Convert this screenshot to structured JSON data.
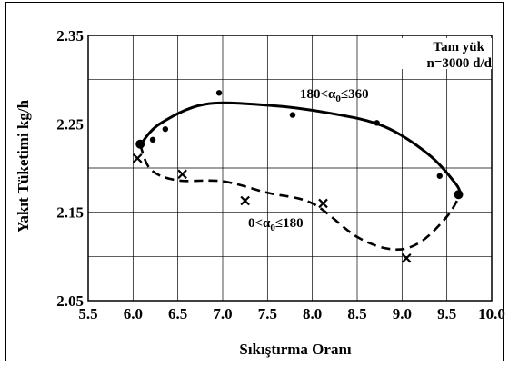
{
  "chart_data": {
    "type": "scatter",
    "title": "",
    "xlabel": "Sıkıştırma Oranı",
    "ylabel": "Yakıt Tüketimi kg/h",
    "xlim": [
      5.5,
      10.0
    ],
    "ylim": [
      2.05,
      2.35
    ],
    "x_ticks": [
      "5.5",
      "6.0",
      "6.5",
      "7.0",
      "7.5",
      "8.0",
      "8.5",
      "9.0",
      "9.5",
      "10.0"
    ],
    "y_ticks": [
      "2.05",
      "2.15",
      "2.25",
      "2.35"
    ],
    "grid": true,
    "note_lines": [
      "Tam yük",
      "n=3000 d/d"
    ],
    "series": [
      {
        "name": "180<α₀≤360",
        "marker": "dot",
        "line": "solid",
        "points": [
          [
            6.08,
            2.227
          ],
          [
            6.22,
            2.232
          ],
          [
            6.36,
            2.244
          ],
          [
            6.96,
            2.285
          ],
          [
            7.78,
            2.26
          ],
          [
            8.72,
            2.251
          ],
          [
            9.42,
            2.191
          ],
          [
            9.63,
            2.17
          ]
        ],
        "curve": [
          [
            6.08,
            2.226
          ],
          [
            6.3,
            2.25
          ],
          [
            6.8,
            2.272
          ],
          [
            7.5,
            2.271
          ],
          [
            8.2,
            2.262
          ],
          [
            8.8,
            2.247
          ],
          [
            9.3,
            2.215
          ],
          [
            9.6,
            2.182
          ],
          [
            9.65,
            2.17
          ]
        ]
      },
      {
        "name": "0<α₀≤180",
        "marker": "cross",
        "line": "dashed",
        "points": [
          [
            6.05,
            2.211
          ],
          [
            6.55,
            2.193
          ],
          [
            7.25,
            2.163
          ],
          [
            8.12,
            2.16
          ],
          [
            9.05,
            2.098
          ]
        ],
        "curve": [
          [
            6.08,
            2.226
          ],
          [
            6.2,
            2.198
          ],
          [
            6.5,
            2.186
          ],
          [
            7.0,
            2.185
          ],
          [
            7.5,
            2.172
          ],
          [
            8.0,
            2.16
          ],
          [
            8.5,
            2.122
          ],
          [
            8.9,
            2.108
          ],
          [
            9.2,
            2.116
          ],
          [
            9.5,
            2.145
          ],
          [
            9.65,
            2.17
          ]
        ]
      }
    ]
  }
}
